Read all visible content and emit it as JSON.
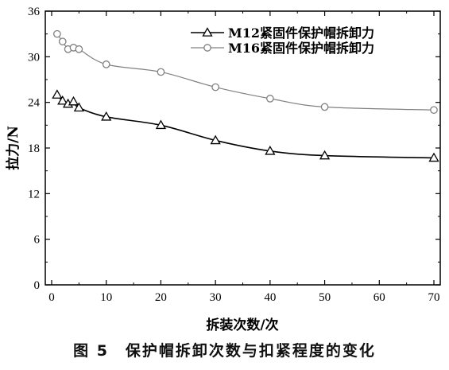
{
  "chart_data": {
    "type": "line",
    "xlabel": "拆装次数/次",
    "ylabel": "拉力/N",
    "xlim": [
      0,
      70
    ],
    "ylim": [
      0,
      36
    ],
    "xticks": [
      0,
      10,
      20,
      30,
      40,
      50,
      60,
      70
    ],
    "yticks": [
      0,
      6,
      12,
      18,
      24,
      30,
      36
    ],
    "x_tick_labels": [
      "0",
      "10",
      "20",
      "30",
      "40",
      "50",
      "60",
      "70"
    ],
    "y_tick_labels": [
      "0",
      "6",
      "12",
      "18",
      "24",
      "30",
      "36"
    ],
    "grid": false,
    "legend_position": "top-right",
    "series": [
      {
        "name": "M12紧固件保护帽拆卸力",
        "marker": "triangle",
        "color": "#000000",
        "x": [
          1,
          2,
          3,
          4,
          5,
          10,
          20,
          30,
          40,
          50,
          70
        ],
        "y": [
          25.0,
          24.2,
          23.8,
          24.1,
          23.3,
          22.1,
          21.0,
          19.0,
          17.6,
          17.0,
          16.7
        ]
      },
      {
        "name": "M16紧固件保护帽拆卸力",
        "marker": "circle",
        "color": "#808080",
        "x": [
          1,
          2,
          3,
          4,
          5,
          10,
          20,
          30,
          40,
          50,
          70
        ],
        "y": [
          33.0,
          32.0,
          31.0,
          31.2,
          31.0,
          29.0,
          28.0,
          26.0,
          24.5,
          23.4,
          23.0
        ]
      }
    ]
  },
  "caption": {
    "text": "图 5　保护帽拆卸次数与扣紧程度的变化"
  }
}
